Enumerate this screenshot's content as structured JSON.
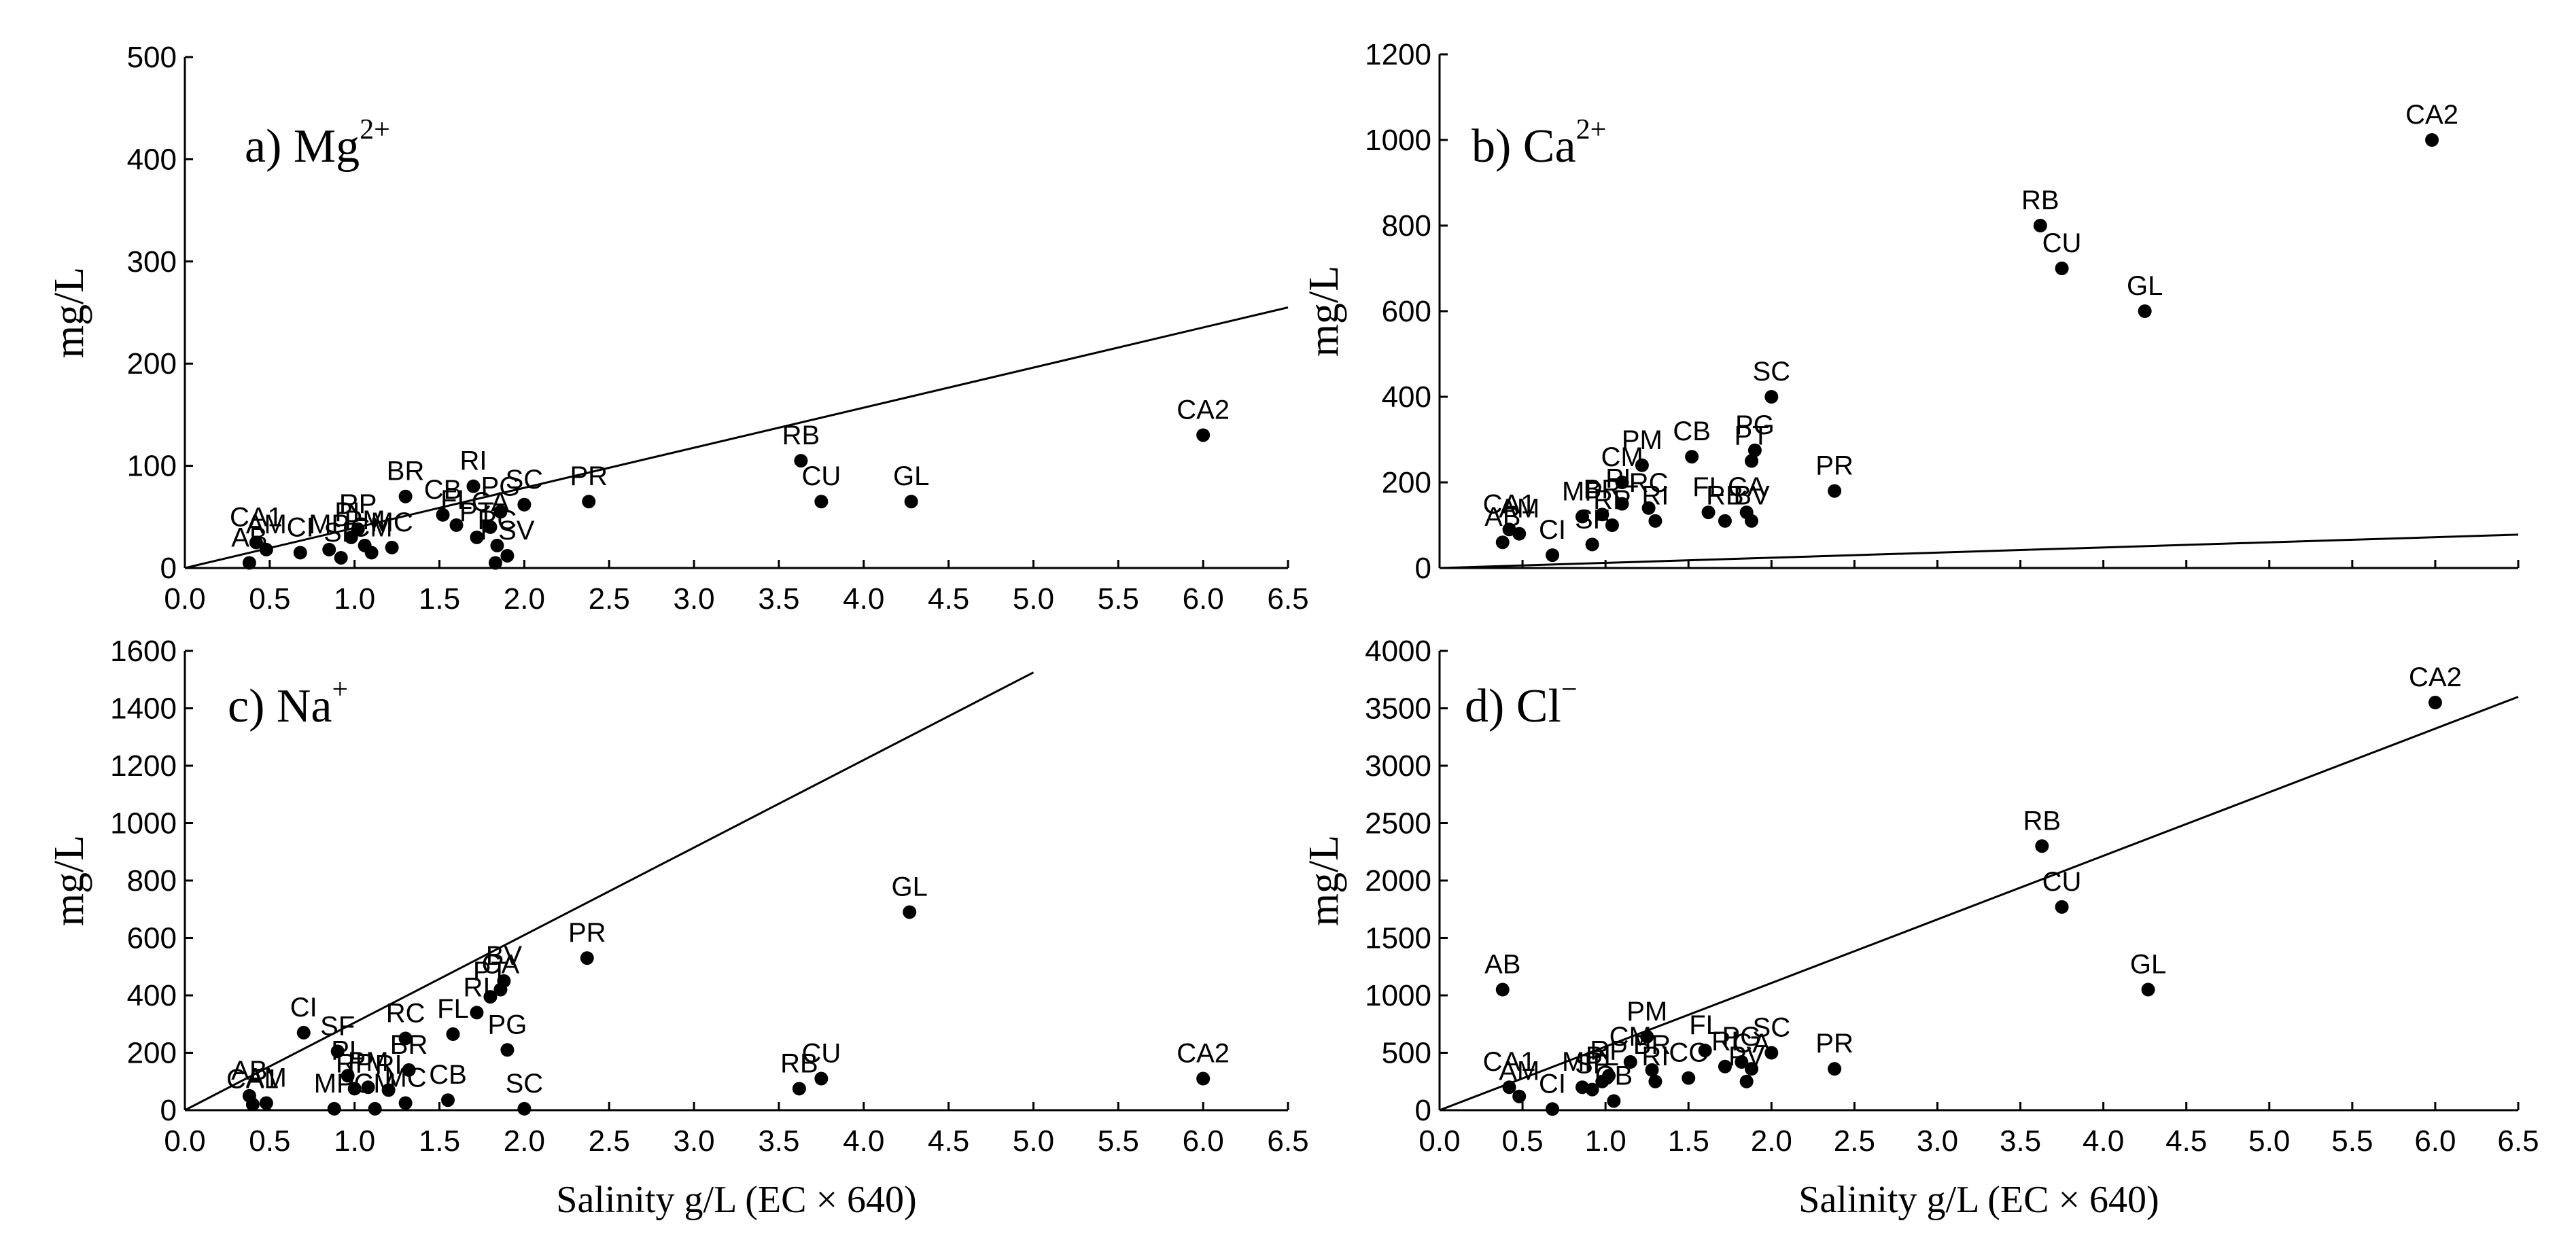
{
  "colors": {
    "ink": "#000000",
    "background": "#ffffff"
  },
  "xlabel_prefix": "Salinity g/L (EC ",
  "xlabel_times": "×",
  "xlabel_suffix": " 640)",
  "chart_data": [
    {
      "type": "scatter",
      "panel_letter": "a)",
      "ion_symbol": "Mg",
      "ion_charge": "2+",
      "ylabel": "mg/L",
      "xlim": [
        0,
        6.5
      ],
      "ylim": [
        0,
        500
      ],
      "xticks": [
        "0.0",
        "0.5",
        "1.0",
        "1.5",
        "2.0",
        "2.5",
        "3.0",
        "3.5",
        "4.0",
        "4.5",
        "5.0",
        "5.5",
        "6.0",
        "6.5"
      ],
      "yticks": [
        "0",
        "100",
        "200",
        "300",
        "400",
        "500"
      ],
      "show_xtick_labels": true,
      "show_xlabel": false,
      "reference_line": {
        "x": [
          0,
          6.5
        ],
        "y": [
          0,
          255
        ]
      },
      "points": [
        {
          "label": "CA1",
          "x": 0.42,
          "y": 25
        },
        {
          "label": "AB",
          "x": 0.38,
          "y": 5
        },
        {
          "label": "AM",
          "x": 0.48,
          "y": 18
        },
        {
          "label": "CI",
          "x": 0.68,
          "y": 15
        },
        {
          "label": "MP",
          "x": 0.85,
          "y": 18
        },
        {
          "label": "SF",
          "x": 0.92,
          "y": 10
        },
        {
          "label": "PL",
          "x": 0.98,
          "y": 30
        },
        {
          "label": "RP",
          "x": 1.02,
          "y": 38
        },
        {
          "label": "PM",
          "x": 1.06,
          "y": 22
        },
        {
          "label": "CM",
          "x": 1.1,
          "y": 15
        },
        {
          "label": "MC",
          "x": 1.22,
          "y": 20
        },
        {
          "label": "BR",
          "x": 1.3,
          "y": 70
        },
        {
          "label": "RI",
          "x": 1.7,
          "y": 80
        },
        {
          "label": "CB",
          "x": 1.52,
          "y": 52
        },
        {
          "label": "FL",
          "x": 1.6,
          "y": 42
        },
        {
          "label": "PT",
          "x": 1.72,
          "y": 30
        },
        {
          "label": "CA",
          "x": 1.8,
          "y": 40
        },
        {
          "label": "PG",
          "x": 1.86,
          "y": 55
        },
        {
          "label": "SC",
          "x": 2.0,
          "y": 62
        },
        {
          "label": "RC",
          "x": 1.84,
          "y": 22
        },
        {
          "label": "PSV",
          "x": 1.9,
          "y": 12
        },
        {
          "label": "",
          "x": 1.83,
          "y": 5
        },
        {
          "label": "PR",
          "x": 2.38,
          "y": 65
        },
        {
          "label": "RB",
          "x": 3.63,
          "y": 105
        },
        {
          "label": "CU",
          "x": 3.75,
          "y": 65
        },
        {
          "label": "GL",
          "x": 4.28,
          "y": 65
        },
        {
          "label": "CA2",
          "x": 6.0,
          "y": 130
        }
      ]
    },
    {
      "type": "scatter",
      "panel_letter": "b)",
      "ion_symbol": "Ca",
      "ion_charge": "2+",
      "ylabel": "mg/L",
      "xlim": [
        0,
        6.5
      ],
      "ylim": [
        0,
        1200
      ],
      "xticks": [
        "0.0",
        "0.5",
        "1.0",
        "1.5",
        "2.0",
        "2.5",
        "3.0",
        "3.5",
        "4.0",
        "4.5",
        "5.0",
        "5.5",
        "6.0",
        "6.5"
      ],
      "yticks": [
        "0",
        "200",
        "400",
        "600",
        "800",
        "1000",
        "1200"
      ],
      "show_xtick_labels": false,
      "show_xlabel": false,
      "reference_line": {
        "x": [
          0,
          6.5
        ],
        "y": [
          0,
          78
        ]
      },
      "points": [
        {
          "label": "CA1",
          "x": 0.42,
          "y": 90
        },
        {
          "label": "AM",
          "x": 0.48,
          "y": 80
        },
        {
          "label": "AB",
          "x": 0.38,
          "y": 60
        },
        {
          "label": "CI",
          "x": 0.68,
          "y": 30
        },
        {
          "label": "MP",
          "x": 0.86,
          "y": 120
        },
        {
          "label": "SF",
          "x": 0.92,
          "y": 55
        },
        {
          "label": "BR",
          "x": 0.98,
          "y": 125
        },
        {
          "label": "RP",
          "x": 1.04,
          "y": 100
        },
        {
          "label": "PL",
          "x": 1.1,
          "y": 150
        },
        {
          "label": "CM",
          "x": 1.1,
          "y": 200
        },
        {
          "label": "PM",
          "x": 1.22,
          "y": 240
        },
        {
          "label": "RI",
          "x": 1.3,
          "y": 110
        },
        {
          "label": "RC",
          "x": 1.26,
          "y": 140
        },
        {
          "label": "CB",
          "x": 1.52,
          "y": 260
        },
        {
          "label": "FL",
          "x": 1.62,
          "y": 130
        },
        {
          "label": "RB",
          "x": 1.72,
          "y": 110
        },
        {
          "label": "CA",
          "x": 1.85,
          "y": 130
        },
        {
          "label": "BV",
          "x": 1.88,
          "y": 110
        },
        {
          "label": "PT",
          "x": 1.88,
          "y": 250
        },
        {
          "label": "PG",
          "x": 1.9,
          "y": 275
        },
        {
          "label": "SC",
          "x": 2.0,
          "y": 400
        },
        {
          "label": "PR",
          "x": 2.38,
          "y": 180
        },
        {
          "label": "RB",
          "x": 3.62,
          "y": 800
        },
        {
          "label": "CU",
          "x": 3.75,
          "y": 700
        },
        {
          "label": "GL",
          "x": 4.25,
          "y": 600
        },
        {
          "label": "CA2",
          "x": 5.98,
          "y": 1000
        }
      ]
    },
    {
      "type": "scatter",
      "panel_letter": "c)",
      "ion_symbol": "Na",
      "ion_charge": "+",
      "ylabel": "mg/L",
      "xlim": [
        0,
        6.5
      ],
      "ylim": [
        0,
        1600
      ],
      "xticks": [
        "0.0",
        "0.5",
        "1.0",
        "1.5",
        "2.0",
        "2.5",
        "3.0",
        "3.5",
        "4.0",
        "4.5",
        "5.0",
        "5.5",
        "6.0",
        "6.5"
      ],
      "yticks": [
        "0",
        "200",
        "400",
        "600",
        "800",
        "1000",
        "1200",
        "1400",
        "1600"
      ],
      "show_xtick_labels": true,
      "show_xlabel": true,
      "reference_line": {
        "x": [
          0,
          5.0
        ],
        "y": [
          0,
          1525
        ]
      },
      "points": [
        {
          "label": "AB",
          "x": 0.38,
          "y": 50
        },
        {
          "label": "CA1",
          "x": 0.4,
          "y": 20
        },
        {
          "label": "AM",
          "x": 0.48,
          "y": 25
        },
        {
          "label": "CI",
          "x": 0.7,
          "y": 270
        },
        {
          "label": "SF",
          "x": 0.9,
          "y": 205
        },
        {
          "label": "PL",
          "x": 0.96,
          "y": 120
        },
        {
          "label": "MP",
          "x": 0.88,
          "y": 5
        },
        {
          "label": "RP",
          "x": 1.0,
          "y": 75
        },
        {
          "label": "PM",
          "x": 1.08,
          "y": 80
        },
        {
          "label": "CM",
          "x": 1.12,
          "y": 5
        },
        {
          "label": "RI",
          "x": 1.2,
          "y": 70
        },
        {
          "label": "MC",
          "x": 1.3,
          "y": 25
        },
        {
          "label": "BR",
          "x": 1.32,
          "y": 140
        },
        {
          "label": "RC",
          "x": 1.3,
          "y": 250
        },
        {
          "label": "CB",
          "x": 1.55,
          "y": 35
        },
        {
          "label": "FL",
          "x": 1.58,
          "y": 265
        },
        {
          "label": "RI",
          "x": 1.72,
          "y": 340
        },
        {
          "label": "PT",
          "x": 1.8,
          "y": 395
        },
        {
          "label": "CA",
          "x": 1.86,
          "y": 420
        },
        {
          "label": "BV",
          "x": 1.88,
          "y": 450
        },
        {
          "label": "PG",
          "x": 1.9,
          "y": 210
        },
        {
          "label": "SC",
          "x": 2.0,
          "y": 5
        },
        {
          "label": "PR",
          "x": 2.37,
          "y": 530
        },
        {
          "label": "RB",
          "x": 3.62,
          "y": 75
        },
        {
          "label": "CU",
          "x": 3.75,
          "y": 110
        },
        {
          "label": "GL",
          "x": 4.27,
          "y": 690
        },
        {
          "label": "CA2",
          "x": 6.0,
          "y": 110
        }
      ]
    },
    {
      "type": "scatter",
      "panel_letter": "d)",
      "ion_symbol": "Cl",
      "ion_charge": "−",
      "ylabel": "mg/L",
      "xlim": [
        0,
        6.5
      ],
      "ylim": [
        0,
        4000
      ],
      "xticks": [
        "0.0",
        "0.5",
        "1.0",
        "1.5",
        "2.0",
        "2.5",
        "3.0",
        "3.5",
        "4.0",
        "4.5",
        "5.0",
        "5.5",
        "6.0",
        "6.5"
      ],
      "yticks": [
        "0",
        "500",
        "1000",
        "1500",
        "2000",
        "2500",
        "3000",
        "3500",
        "4000"
      ],
      "show_xtick_labels": true,
      "show_xlabel": true,
      "reference_line": {
        "x": [
          0,
          6.5
        ],
        "y": [
          0,
          3600
        ]
      },
      "points": [
        {
          "label": "AB",
          "x": 0.38,
          "y": 1050
        },
        {
          "label": "CA1",
          "x": 0.42,
          "y": 200
        },
        {
          "label": "AM",
          "x": 0.48,
          "y": 120
        },
        {
          "label": "CI",
          "x": 0.68,
          "y": 10
        },
        {
          "label": "MP",
          "x": 0.86,
          "y": 200
        },
        {
          "label": "SF",
          "x": 0.92,
          "y": 180
        },
        {
          "label": "PL",
          "x": 0.98,
          "y": 250
        },
        {
          "label": "RP",
          "x": 1.02,
          "y": 300
        },
        {
          "label": "CB",
          "x": 1.05,
          "y": 80
        },
        {
          "label": "PM",
          "x": 1.25,
          "y": 640
        },
        {
          "label": "CM",
          "x": 1.15,
          "y": 420
        },
        {
          "label": "BR",
          "x": 1.28,
          "y": 350
        },
        {
          "label": "RI",
          "x": 1.3,
          "y": 250
        },
        {
          "label": "CC",
          "x": 1.5,
          "y": 280
        },
        {
          "label": "FL",
          "x": 1.6,
          "y": 520
        },
        {
          "label": "RI",
          "x": 1.72,
          "y": 380
        },
        {
          "label": "PG",
          "x": 1.82,
          "y": 420
        },
        {
          "label": "CA",
          "x": 1.88,
          "y": 360
        },
        {
          "label": "PV",
          "x": 1.85,
          "y": 250
        },
        {
          "label": "SC",
          "x": 2.0,
          "y": 500
        },
        {
          "label": "PR",
          "x": 2.38,
          "y": 360
        },
        {
          "label": "RB",
          "x": 3.63,
          "y": 2300
        },
        {
          "label": "CU",
          "x": 3.75,
          "y": 1770
        },
        {
          "label": "GL",
          "x": 4.27,
          "y": 1050
        },
        {
          "label": "CA2",
          "x": 6.0,
          "y": 3550
        }
      ]
    }
  ]
}
